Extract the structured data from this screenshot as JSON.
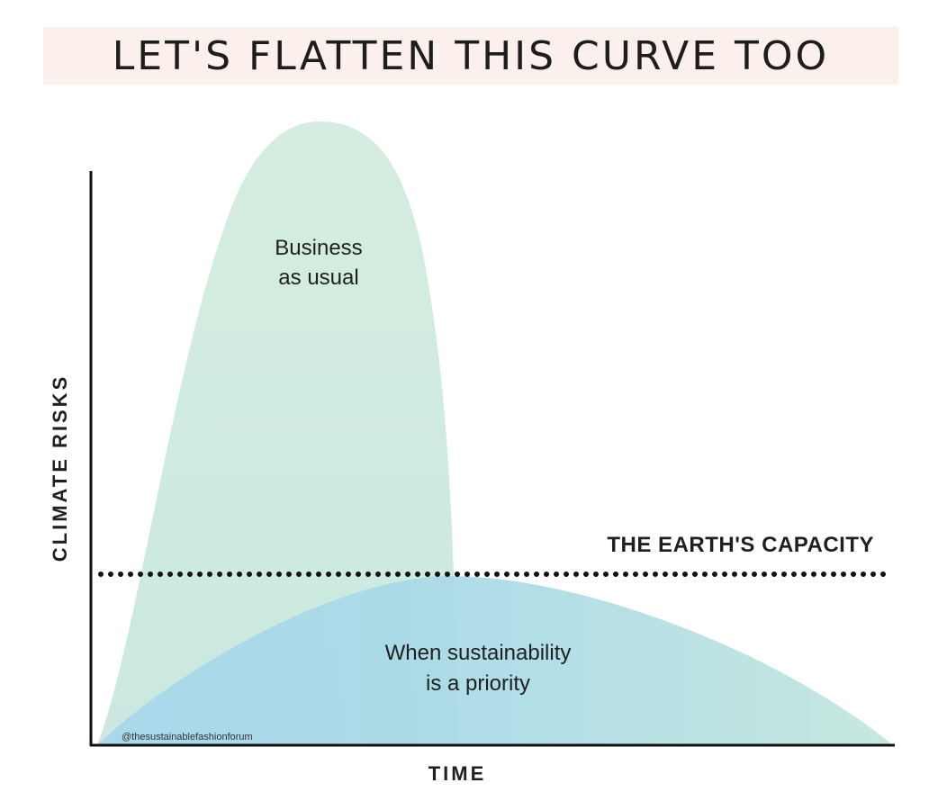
{
  "title": "LET'S FLATTEN THIS CURVE TOO",
  "y_axis_label": "CLIMATE RISKS",
  "x_axis_label": "TIME",
  "capacity_line": {
    "label": "THE EARTH'S CAPACITY",
    "style": "dotted"
  },
  "curves": [
    {
      "id": "business",
      "label_lines": [
        "Business",
        "as usual"
      ],
      "color": "#d4ece0"
    },
    {
      "id": "sustainable",
      "label_lines": [
        "When sustainability",
        "is a priority"
      ],
      "color": "#a9d9e6"
    }
  ],
  "credit": "@thesustainablefashionforum",
  "colors": {
    "title_band": "#fbf0ec",
    "axis": "#111111",
    "text": "#1f1f1f"
  }
}
